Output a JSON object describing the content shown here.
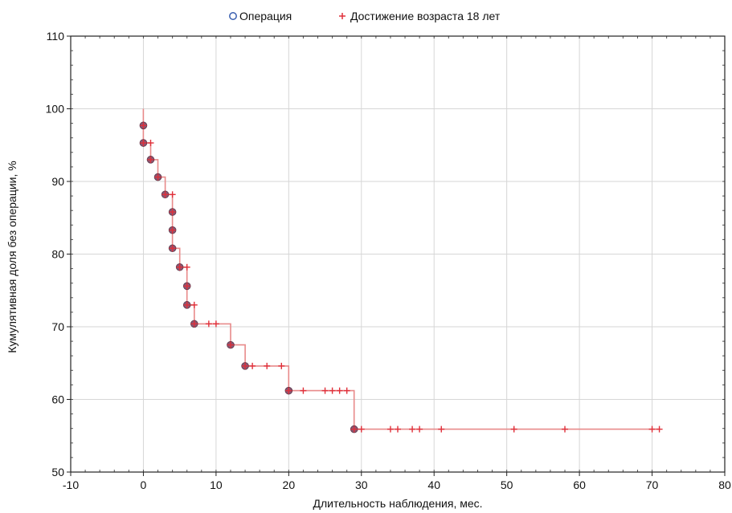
{
  "chart_data": {
    "type": "line",
    "subtype": "step-survival",
    "title": "",
    "xlabel": "Длительность наблюдения, мес.",
    "ylabel": "Кумулятивная доля без операции, %",
    "xlim": [
      -10,
      80
    ],
    "ylim": [
      50,
      110
    ],
    "xticks": [
      -10,
      0,
      10,
      20,
      30,
      40,
      50,
      60,
      70,
      80
    ],
    "yticks": [
      50,
      60,
      70,
      80,
      90,
      100,
      110
    ],
    "grid": true,
    "legend_position": "top-center",
    "legend": [
      {
        "label": "Операция",
        "marker": "circle",
        "color": "#6a2a4a"
      },
      {
        "label": "Достижение возраста 18 лет",
        "marker": "plus",
        "color": "#e0303a"
      }
    ],
    "survival_curve": {
      "color": "#e88a8a",
      "points": [
        [
          0,
          100
        ],
        [
          0,
          97.7
        ],
        [
          0,
          95.3
        ],
        [
          1,
          95.3
        ],
        [
          1,
          93.0
        ],
        [
          2,
          93.0
        ],
        [
          2,
          90.6
        ],
        [
          3,
          90.6
        ],
        [
          3,
          88.2
        ],
        [
          4,
          88.2
        ],
        [
          4,
          85.8
        ],
        [
          4,
          83.3
        ],
        [
          4,
          80.8
        ],
        [
          5,
          80.8
        ],
        [
          5,
          78.2
        ],
        [
          6,
          78.2
        ],
        [
          6,
          75.6
        ],
        [
          6,
          73.0
        ],
        [
          7,
          73.0
        ],
        [
          7,
          70.4
        ],
        [
          12,
          70.4
        ],
        [
          12,
          67.5
        ],
        [
          14,
          67.5
        ],
        [
          14,
          64.6
        ],
        [
          20,
          64.6
        ],
        [
          20,
          61.2
        ],
        [
          29,
          61.2
        ],
        [
          29,
          55.9
        ],
        [
          71,
          55.9
        ]
      ]
    },
    "events": [
      {
        "x": 0,
        "y": 97.7
      },
      {
        "x": 0,
        "y": 95.3
      },
      {
        "x": 1,
        "y": 93.0
      },
      {
        "x": 2,
        "y": 90.6
      },
      {
        "x": 3,
        "y": 88.2
      },
      {
        "x": 4,
        "y": 85.8
      },
      {
        "x": 4,
        "y": 83.3
      },
      {
        "x": 4,
        "y": 80.8
      },
      {
        "x": 5,
        "y": 78.2
      },
      {
        "x": 6,
        "y": 75.6
      },
      {
        "x": 6,
        "y": 73.0
      },
      {
        "x": 7,
        "y": 70.4
      },
      {
        "x": 12,
        "y": 67.5
      },
      {
        "x": 14,
        "y": 64.6
      },
      {
        "x": 20,
        "y": 61.2
      },
      {
        "x": 29,
        "y": 55.9
      }
    ],
    "censored": [
      {
        "x": 0,
        "y": 97.7
      },
      {
        "x": 0,
        "y": 95.3
      },
      {
        "x": 1,
        "y": 95.3
      },
      {
        "x": 1,
        "y": 93.0
      },
      {
        "x": 2,
        "y": 90.6
      },
      {
        "x": 3,
        "y": 88.2
      },
      {
        "x": 4,
        "y": 88.2
      },
      {
        "x": 4,
        "y": 85.8
      },
      {
        "x": 4,
        "y": 83.3
      },
      {
        "x": 4,
        "y": 80.8
      },
      {
        "x": 5,
        "y": 78.2
      },
      {
        "x": 6,
        "y": 78.2
      },
      {
        "x": 6,
        "y": 75.6
      },
      {
        "x": 6,
        "y": 73.0
      },
      {
        "x": 7,
        "y": 73.0
      },
      {
        "x": 7,
        "y": 70.4
      },
      {
        "x": 9,
        "y": 70.4
      },
      {
        "x": 10,
        "y": 70.4
      },
      {
        "x": 12,
        "y": 67.5
      },
      {
        "x": 14,
        "y": 64.6
      },
      {
        "x": 15,
        "y": 64.6
      },
      {
        "x": 17,
        "y": 64.6
      },
      {
        "x": 19,
        "y": 64.6
      },
      {
        "x": 20,
        "y": 61.2
      },
      {
        "x": 22,
        "y": 61.2
      },
      {
        "x": 25,
        "y": 61.2
      },
      {
        "x": 26,
        "y": 61.2
      },
      {
        "x": 27,
        "y": 61.2
      },
      {
        "x": 28,
        "y": 61.2
      },
      {
        "x": 29,
        "y": 55.9
      },
      {
        "x": 30,
        "y": 55.9
      },
      {
        "x": 34,
        "y": 55.9
      },
      {
        "x": 35,
        "y": 55.9
      },
      {
        "x": 37,
        "y": 55.9
      },
      {
        "x": 38,
        "y": 55.9
      },
      {
        "x": 41,
        "y": 55.9
      },
      {
        "x": 51,
        "y": 55.9
      },
      {
        "x": 58,
        "y": 55.9
      },
      {
        "x": 70,
        "y": 55.9
      },
      {
        "x": 71,
        "y": 55.9
      }
    ]
  }
}
